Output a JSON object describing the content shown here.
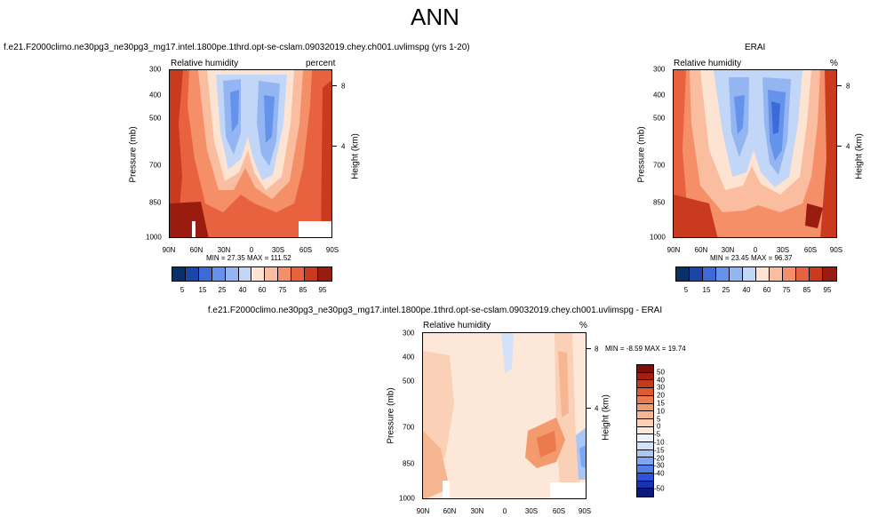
{
  "title": "ANN",
  "palettes": {
    "abs": [
      "#08306b",
      "#1c45a8",
      "#3c6ad6",
      "#6592ea",
      "#93b6f2",
      "#c2d6f7",
      "#fde4d2",
      "#fbbd9f",
      "#f58f68",
      "#e8623f",
      "#c93a1f",
      "#9a1b10"
    ],
    "diff": [
      "#0b1a78",
      "#1733b0",
      "#2d54d8",
      "#5280e8",
      "#7ea7f0",
      "#a9c6f5",
      "#d3e2f9",
      "#eef3fb",
      "#fce7d8",
      "#fad0b6",
      "#f7b692",
      "#f39a6e",
      "#ec7a4c",
      "#df5a30",
      "#c53a1d",
      "#a21f12",
      "#7d0f08"
    ]
  },
  "panels": {
    "model": {
      "case": "f.e21.F2000climo.ne30pg3_ne30pg3_mg17.intel.1800pe.1thrd.opt-se-cslam.09032019.chey.ch001.uvlimspg (yrs 1-20)",
      "variable": "Relative humidity",
      "units": "percent",
      "stats": "MIN =  27.35  MAX = 111.52"
    },
    "obs": {
      "case": "ERAI",
      "variable": "Relative humidity",
      "units": "%",
      "stats": "MIN =  23.45  MAX =  96.37"
    },
    "diff": {
      "case": "f.e21.F2000climo.ne30pg3_ne30pg3_mg17.intel.1800pe.1thrd.opt-se-cslam.09032019.chey.ch001.uvlimspg - ERAI",
      "variable": "Relative humidity",
      "units": "%",
      "stats": "MIN = -8.59  MAX = 19.74"
    }
  },
  "axes": {
    "ylabel": "Pressure (mb)",
    "y2label": "Height (km)"
  },
  "chart_data": [
    {
      "type": "heatmap",
      "title": "Relative humidity (model)",
      "xlabel": "",
      "ylabel": "Pressure (mb)",
      "x": [
        "90N",
        "60N",
        "30N",
        "0",
        "30S",
        "60S",
        "90S"
      ],
      "y": [
        "300",
        "400",
        "500",
        "700",
        "850",
        "1000"
      ],
      "ylim": [
        1000,
        300
      ],
      "height_ticks": [
        "8",
        "4"
      ],
      "colorbar_levels": [
        "5",
        "15",
        "25",
        "40",
        "60",
        "75",
        "85",
        "95"
      ],
      "min": 27.35,
      "max": 111.52
    },
    {
      "type": "heatmap",
      "title": "Relative humidity (ERAI)",
      "xlabel": "",
      "ylabel": "Pressure (mb)",
      "x": [
        "90N",
        "60N",
        "30N",
        "0",
        "30S",
        "60S",
        "90S"
      ],
      "y": [
        "300",
        "400",
        "500",
        "700",
        "850",
        "1000"
      ],
      "ylim": [
        1000,
        300
      ],
      "height_ticks": [
        "8",
        "4"
      ],
      "colorbar_levels": [
        "5",
        "15",
        "25",
        "40",
        "60",
        "75",
        "85",
        "95"
      ],
      "min": 23.45,
      "max": 96.37
    },
    {
      "type": "heatmap",
      "title": "Relative humidity (model - ERAI)",
      "xlabel": "",
      "ylabel": "Pressure (mb)",
      "x": [
        "90N",
        "60N",
        "30N",
        "0",
        "30S",
        "60S",
        "90S"
      ],
      "y": [
        "300",
        "400",
        "500",
        "700",
        "850",
        "1000"
      ],
      "ylim": [
        1000,
        300
      ],
      "height_ticks": [
        "8",
        "4"
      ],
      "colorbar_levels": [
        "50",
        "40",
        "30",
        "20",
        "15",
        "10",
        "5",
        "0",
        "-5",
        "-10",
        "-15",
        "-20",
        "-30",
        "-40",
        "-50"
      ],
      "min": -8.59,
      "max": 19.74
    }
  ]
}
